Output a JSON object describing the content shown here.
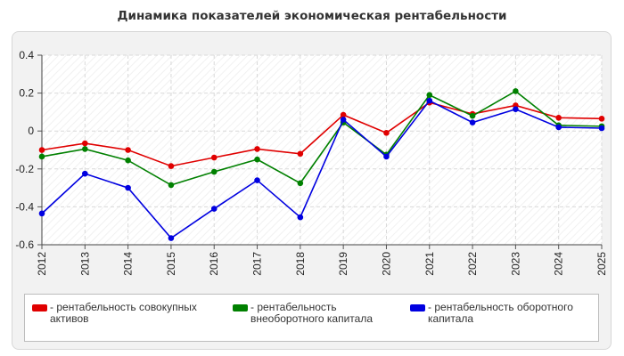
{
  "title": "Динамика показателей экономическая рентабельности",
  "chart_data": {
    "type": "line",
    "x": [
      "2012",
      "2013",
      "2014",
      "2015",
      "2016",
      "2017",
      "2018",
      "2019",
      "2020",
      "2021",
      "2022",
      "2023",
      "2024",
      "2025"
    ],
    "ylim": [
      -0.6,
      0.4
    ],
    "yticks": [
      "0.4",
      "0.2",
      "0",
      "-0.2",
      "-0.4",
      "-0.6"
    ],
    "grid": true,
    "legend_position": "bottom",
    "series": [
      {
        "name": "рентабельность совокупных активов",
        "color": "#e00000",
        "values": [
          -0.1,
          -0.065,
          -0.1,
          -0.185,
          -0.14,
          -0.095,
          -0.12,
          0.085,
          -0.01,
          0.15,
          0.09,
          0.135,
          0.07,
          0.065
        ]
      },
      {
        "name": "рентабельность внеоборотного капитала",
        "color": "#008000",
        "values": [
          -0.135,
          -0.095,
          -0.155,
          -0.285,
          -0.215,
          -0.15,
          -0.275,
          0.045,
          -0.125,
          0.19,
          0.08,
          0.21,
          0.03,
          0.025
        ]
      },
      {
        "name": "рентабельность оборотного капитала",
        "color": "#0000e0",
        "values": [
          -0.435,
          -0.225,
          -0.3,
          -0.565,
          -0.41,
          -0.26,
          -0.455,
          0.06,
          -0.135,
          0.16,
          0.045,
          0.115,
          0.02,
          0.015
        ]
      }
    ]
  },
  "legend": [
    {
      "prefix": "- ",
      "label": "рентабельность совокупных активов",
      "color": "#e00000"
    },
    {
      "prefix": "- ",
      "label": "рентабельность внеоборотного капитала",
      "color": "#008000"
    },
    {
      "prefix": "- ",
      "label": "рентабельность оборотного капитала",
      "color": "#0000e0"
    }
  ]
}
